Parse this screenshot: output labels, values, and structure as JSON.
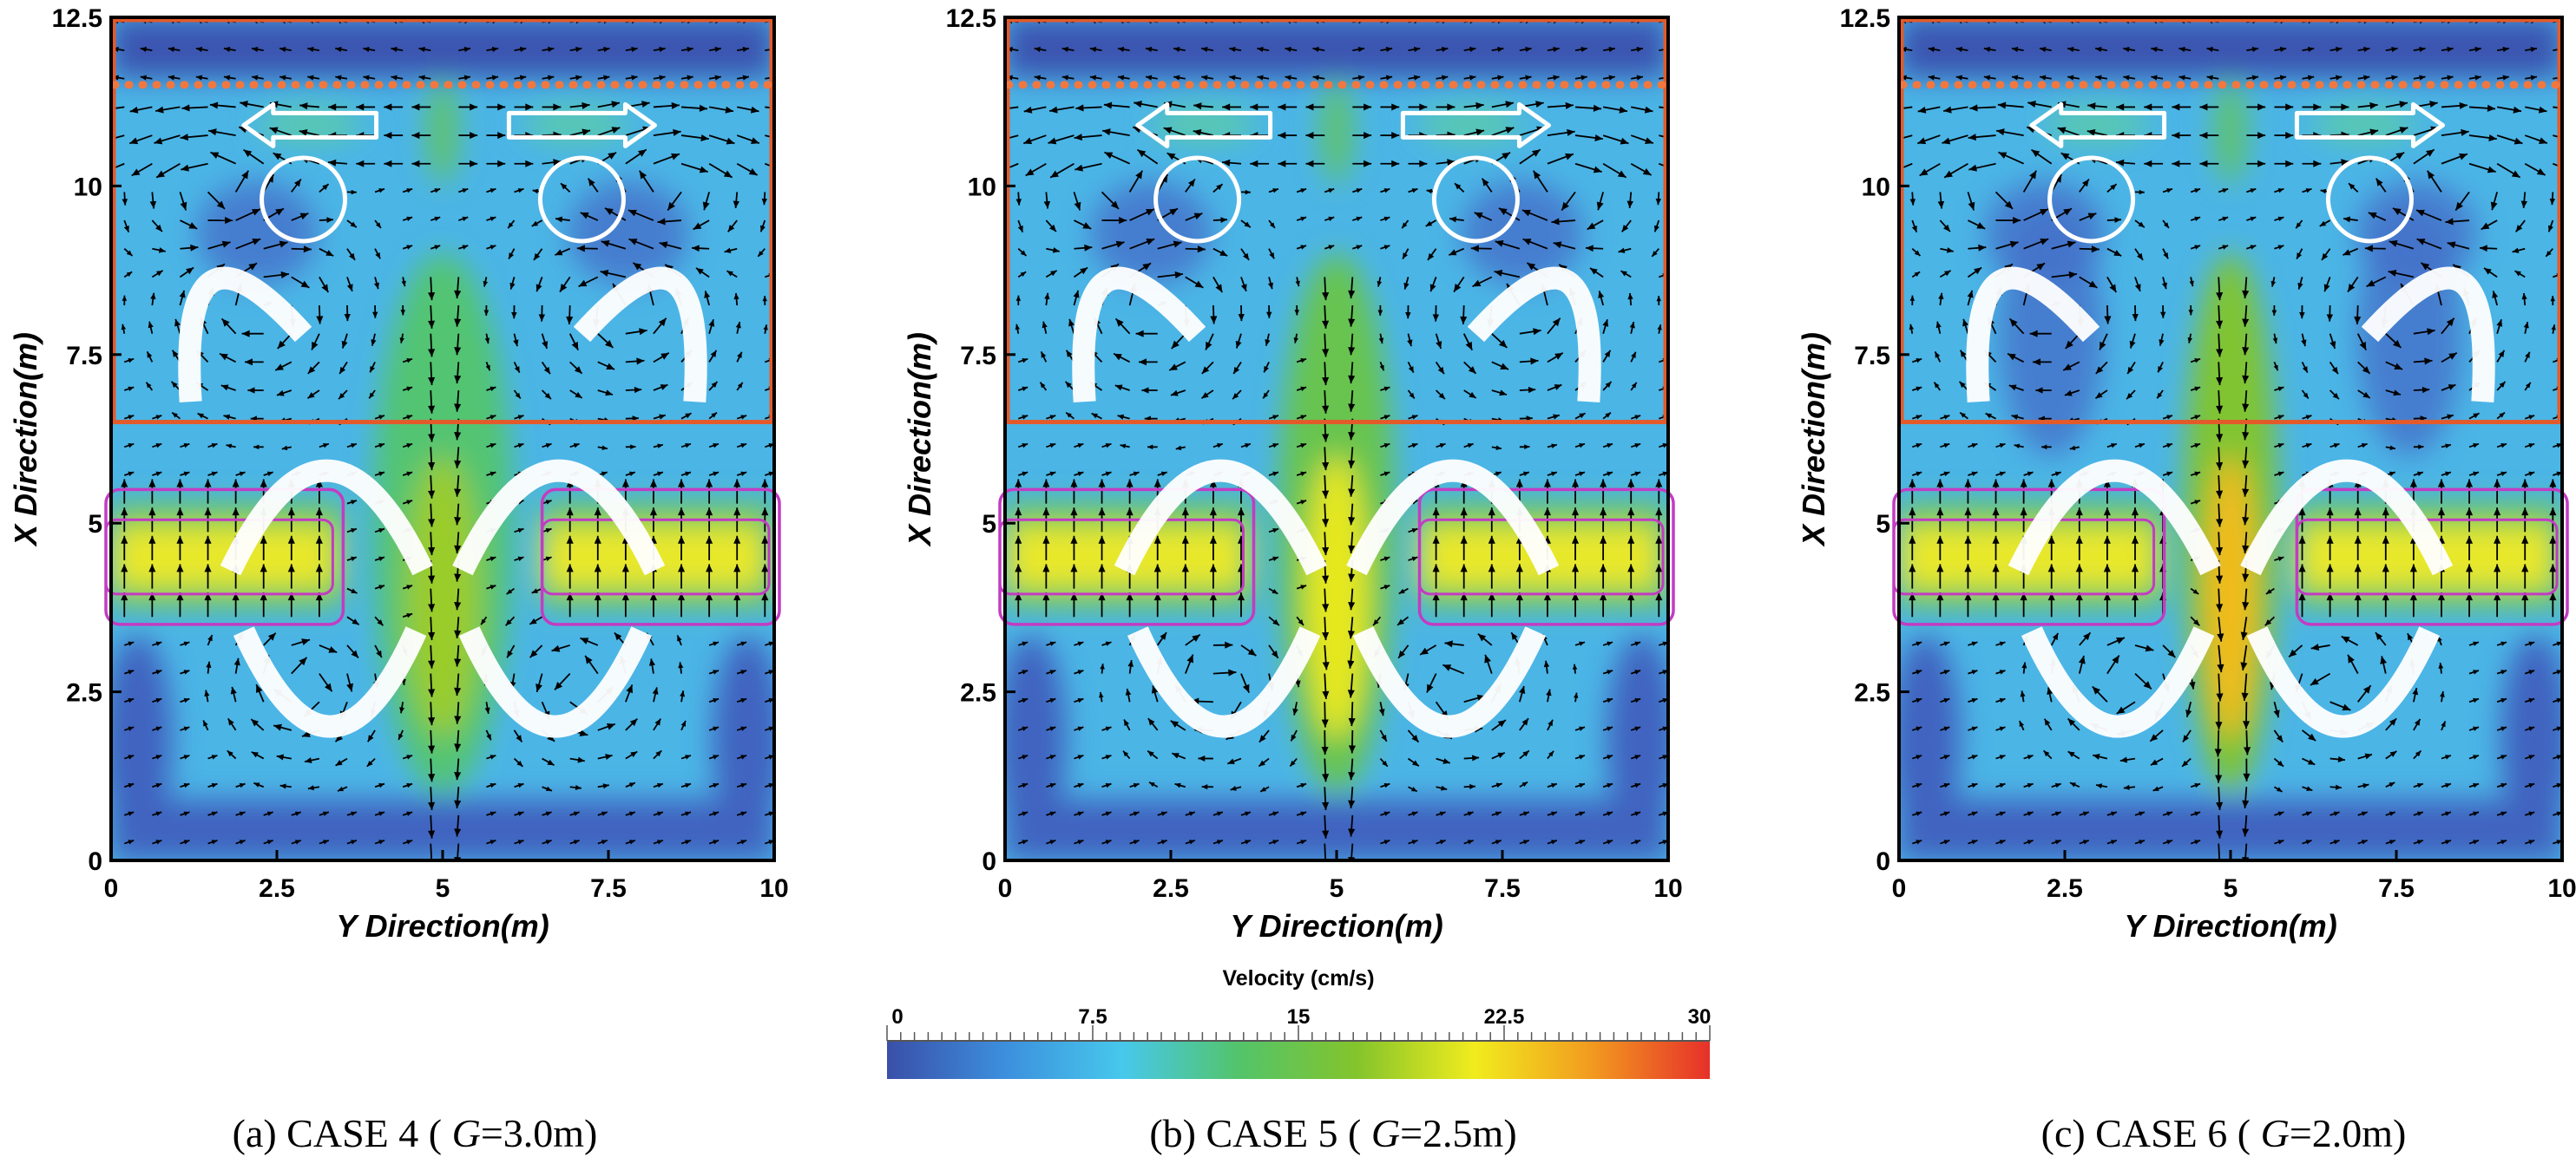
{
  "chart_data": [
    {
      "type": "vector-field",
      "caption": {
        "prefix": "(a)  CASE  4  ( ",
        "var": "G",
        "suffix": "=3.0m)"
      },
      "xlabel": "Y Direction(m)",
      "ylabel": "X Direction(m)",
      "xlim": [
        0,
        10
      ],
      "ylim": [
        0,
        12.5
      ],
      "xticks": [
        "0",
        "2.5",
        "5",
        "7.5",
        "10"
      ],
      "yticks": [
        "0",
        "2.5",
        "5",
        "7.5",
        "10",
        "12.5"
      ],
      "gap_G_m": 3.0,
      "upper_zone_y": [
        6.5,
        12.5
      ],
      "dotted_line_y": 11.5,
      "structures": [
        {
          "x": [
            0,
            3.5
          ],
          "y": [
            3.5,
            5.5
          ]
        },
        {
          "x": [
            6.5,
            10
          ],
          "y": [
            3.5,
            5.5
          ]
        }
      ],
      "jet_peak_cm_s": 18
    },
    {
      "type": "vector-field",
      "caption": {
        "prefix": "(b)  CASE  5  ( ",
        "var": "G",
        "suffix": "=2.5m)"
      },
      "xlabel": "Y Direction(m)",
      "ylabel": "X Direction(m)",
      "xlim": [
        0,
        10
      ],
      "ylim": [
        0,
        12.5
      ],
      "xticks": [
        "0",
        "2.5",
        "5",
        "7.5",
        "10"
      ],
      "yticks": [
        "0",
        "2.5",
        "5",
        "7.5",
        "10",
        "12.5"
      ],
      "gap_G_m": 2.5,
      "upper_zone_y": [
        6.5,
        12.5
      ],
      "dotted_line_y": 11.5,
      "structures": [
        {
          "x": [
            0,
            3.75
          ],
          "y": [
            3.5,
            5.5
          ]
        },
        {
          "x": [
            6.25,
            10
          ],
          "y": [
            3.5,
            5.5
          ]
        }
      ],
      "jet_peak_cm_s": 21
    },
    {
      "type": "vector-field",
      "caption": {
        "prefix": "(c)  CASE  6  ( ",
        "var": "G",
        "suffix": "=2.0m)"
      },
      "xlabel": "Y Direction(m)",
      "ylabel": "X Direction(m)",
      "xlim": [
        0,
        10
      ],
      "ylim": [
        0,
        12.5
      ],
      "xticks": [
        "0",
        "2.5",
        "5",
        "7.5",
        "10"
      ],
      "yticks": [
        "0",
        "2.5",
        "5",
        "7.5",
        "10",
        "12.5"
      ],
      "gap_G_m": 2.0,
      "upper_zone_y": [
        6.5,
        12.5
      ],
      "dotted_line_y": 11.5,
      "structures": [
        {
          "x": [
            0,
            4.0
          ],
          "y": [
            3.5,
            5.5
          ]
        },
        {
          "x": [
            6.0,
            10
          ],
          "y": [
            3.5,
            5.5
          ]
        }
      ],
      "jet_peak_cm_s": 24
    }
  ],
  "colorbar": {
    "title": "Velocity (cm/s)",
    "min": 0,
    "max": 30,
    "ticks": [
      "0",
      "7.5",
      "15",
      "22.5",
      "30"
    ],
    "colors": [
      "#3a4fa8",
      "#3c8fdd",
      "#47c8ec",
      "#53c46a",
      "#84c42c",
      "#f1ec1e",
      "#f29a1f",
      "#e6302a"
    ]
  },
  "colors": {
    "frame": "#000000",
    "zone_outline": "#e35a2a",
    "dotted_line": "#f07840",
    "structure_outline": "#c23cc3",
    "vector": "#000000",
    "flow_arrow_outline": "#ffffff"
  }
}
